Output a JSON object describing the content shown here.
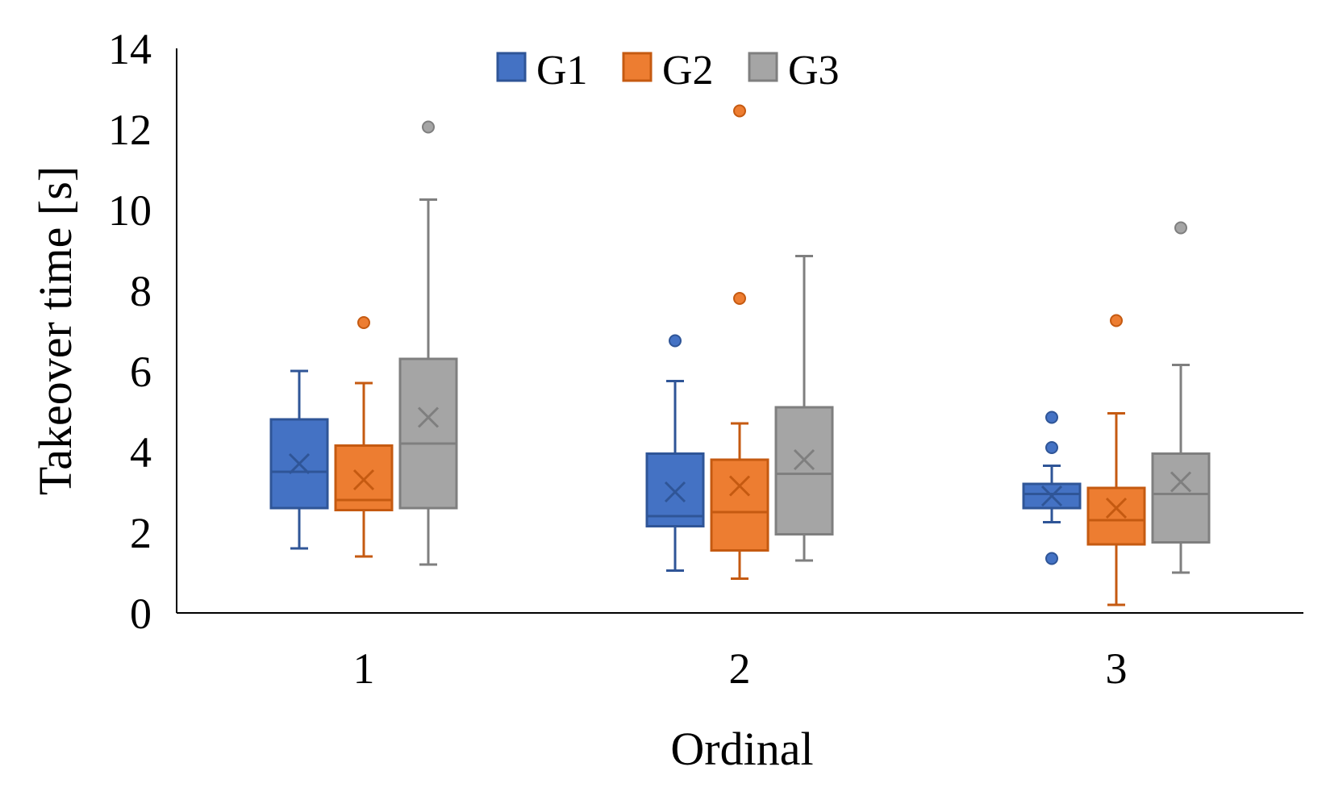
{
  "chart_data": {
    "type": "box",
    "xlabel": "Ordinal",
    "ylabel": "Takeover time [s]",
    "ylim": [
      0,
      14
    ],
    "yticks": [
      0,
      2,
      4,
      6,
      8,
      10,
      12,
      14
    ],
    "categories": [
      "1",
      "2",
      "3"
    ],
    "legend_position": "top-center",
    "grid": false,
    "series": [
      {
        "name": "G1",
        "fill": "#4472C4",
        "stroke": "#2F5597",
        "boxes": [
          {
            "whisker_low": 1.6,
            "q1": 2.6,
            "median": 3.5,
            "q3": 4.8,
            "whisker_high": 6.0,
            "mean": 3.7,
            "outliers": []
          },
          {
            "whisker_low": 1.05,
            "q1": 2.15,
            "median": 2.4,
            "q3": 3.95,
            "whisker_high": 5.75,
            "mean": 3.0,
            "outliers": [
              6.75
            ]
          },
          {
            "whisker_low": 2.25,
            "q1": 2.6,
            "median": 2.95,
            "q3": 3.2,
            "whisker_high": 3.65,
            "mean": 2.9,
            "outliers": [
              4.85,
              4.1,
              1.35
            ]
          }
        ]
      },
      {
        "name": "G2",
        "fill": "#ED7D31",
        "stroke": "#C55A11",
        "boxes": [
          {
            "whisker_low": 1.4,
            "q1": 2.55,
            "median": 2.8,
            "q3": 4.15,
            "whisker_high": 5.7,
            "mean": 3.3,
            "outliers": [
              7.2
            ]
          },
          {
            "whisker_low": 0.85,
            "q1": 1.55,
            "median": 2.5,
            "q3": 3.8,
            "whisker_high": 4.7,
            "mean": 3.15,
            "outliers": [
              7.8,
              12.45
            ]
          },
          {
            "whisker_low": 0.2,
            "q1": 1.7,
            "median": 2.3,
            "q3": 3.1,
            "whisker_high": 4.95,
            "mean": 2.6,
            "outliers": [
              7.25
            ]
          }
        ]
      },
      {
        "name": "G3",
        "fill": "#A5A5A5",
        "stroke": "#7F7F7F",
        "boxes": [
          {
            "whisker_low": 1.2,
            "q1": 2.6,
            "median": 4.2,
            "q3": 6.3,
            "whisker_high": 10.25,
            "mean": 4.85,
            "outliers": [
              12.05
            ]
          },
          {
            "whisker_low": 1.3,
            "q1": 1.95,
            "median": 3.45,
            "q3": 5.1,
            "whisker_high": 8.85,
            "mean": 3.8,
            "outliers": []
          },
          {
            "whisker_low": 1.0,
            "q1": 1.75,
            "median": 2.95,
            "q3": 3.95,
            "whisker_high": 6.15,
            "mean": 3.25,
            "outliers": [
              9.55
            ]
          }
        ]
      }
    ]
  }
}
